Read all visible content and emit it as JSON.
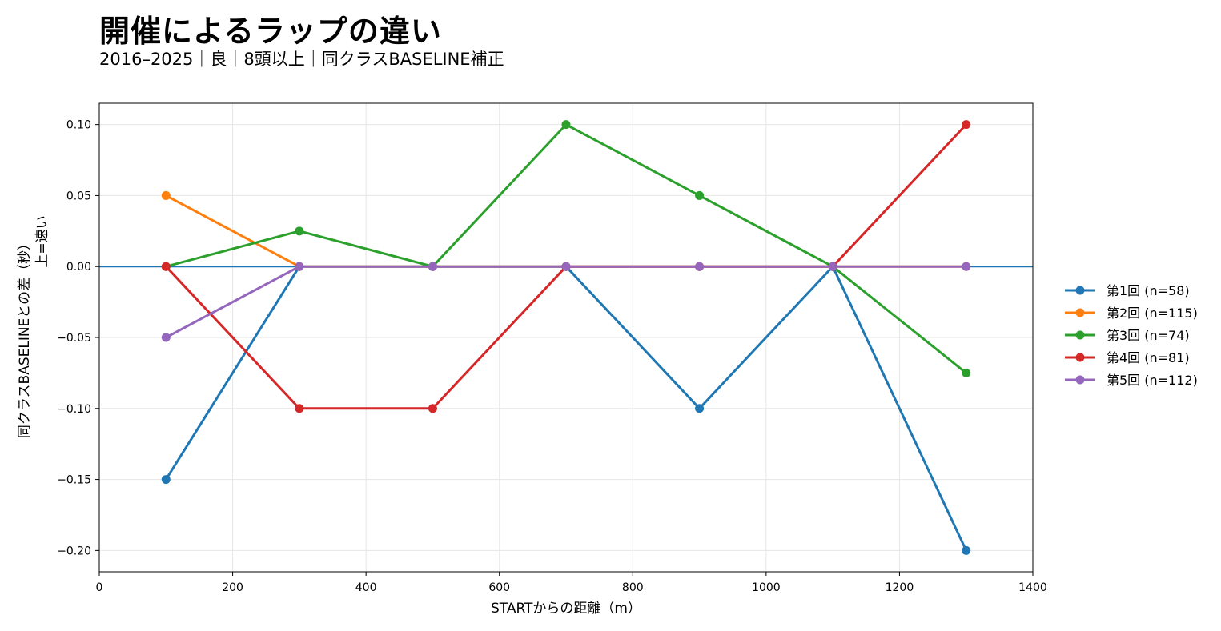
{
  "chart_data": {
    "type": "line",
    "title": "開催によるラップの違い",
    "subtitle": "2016–2025｜良｜8頭以上｜同クラスBASELINE補正",
    "xlabel": "STARTからの距離（m）",
    "ylabel": "同クラスBASELINEとの差（秒）",
    "ylabel_sub": "上=速い",
    "xlim": [
      0,
      1400
    ],
    "ylim": [
      -0.215,
      0.115
    ],
    "x_ticks": [
      0,
      200,
      400,
      600,
      800,
      1000,
      1200,
      1400
    ],
    "x_tick_labels": [
      "0",
      "200",
      "400",
      "600",
      "800",
      "1000",
      "1200",
      "1400"
    ],
    "y_ticks": [
      0.1,
      0.05,
      0.0,
      -0.05,
      -0.1,
      -0.15,
      -0.2
    ],
    "y_tick_labels": [
      "0.10",
      "0.05",
      "0.00",
      "−0.05",
      "−0.10",
      "−0.15",
      "−0.20"
    ],
    "grid": true,
    "reference_line": {
      "y": 0,
      "color": "#1f77b4"
    },
    "legend_position": "right",
    "x": [
      100,
      300,
      500,
      700,
      900,
      1100,
      1300
    ],
    "series": [
      {
        "name": "第1回 (n=58)",
        "color": "#1f77b4",
        "values": [
          -0.15,
          0.0,
          0.0,
          0.0,
          -0.1,
          0.0,
          -0.2
        ]
      },
      {
        "name": "第2回 (n=115)",
        "color": "#ff7f0e",
        "values": [
          0.05,
          0.0,
          0.0,
          0.0,
          0.0,
          0.0,
          0.0
        ]
      },
      {
        "name": "第3回 (n=74)",
        "color": "#2ca02c",
        "values": [
          0.0,
          0.025,
          0.0,
          0.1,
          0.05,
          0.0,
          -0.075
        ]
      },
      {
        "name": "第4回 (n=81)",
        "color": "#d62728",
        "values": [
          0.0,
          -0.1,
          -0.1,
          0.0,
          0.0,
          0.0,
          0.1
        ]
      },
      {
        "name": "第5回 (n=112)",
        "color": "#9467bd",
        "values": [
          -0.05,
          0.0,
          0.0,
          0.0,
          0.0,
          0.0,
          0.0
        ]
      }
    ]
  }
}
